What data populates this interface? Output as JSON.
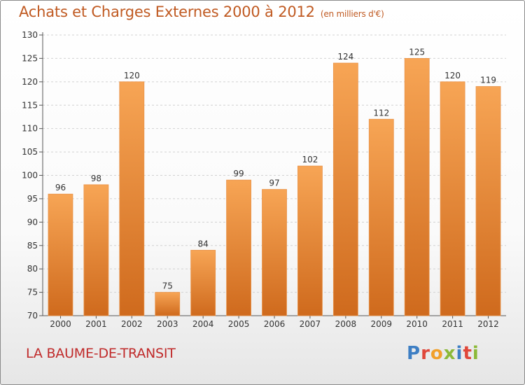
{
  "header": {
    "title": "Achats et Charges Externes 2000 à 2012",
    "subtitle": "(en milliers d'€)"
  },
  "footer": {
    "location": "LA BAUME-DE-TRANSIT",
    "brand_letters": [
      "P",
      "r",
      "o",
      "x",
      "i",
      "t",
      "i"
    ]
  },
  "colors": {
    "bar_top": "#f7a555",
    "bar_bottom": "#cf6a1d",
    "title": "#c05a22",
    "location": "#c02a2a"
  },
  "chart_data": {
    "type": "bar",
    "title": "Achats et Charges Externes 2000 à 2012",
    "subtitle": "(en milliers d'€)",
    "categories": [
      "2000",
      "2001",
      "2002",
      "2003",
      "2004",
      "2005",
      "2006",
      "2007",
      "2008",
      "2009",
      "2010",
      "2011",
      "2012"
    ],
    "values": [
      96,
      98,
      120,
      75,
      84,
      99,
      97,
      102,
      124,
      112,
      125,
      120,
      119
    ],
    "ylim": [
      70,
      130
    ],
    "yticks": [
      70,
      75,
      80,
      85,
      90,
      95,
      100,
      105,
      110,
      115,
      120,
      125,
      130
    ],
    "grid": true,
    "xlabel": "",
    "ylabel": ""
  }
}
